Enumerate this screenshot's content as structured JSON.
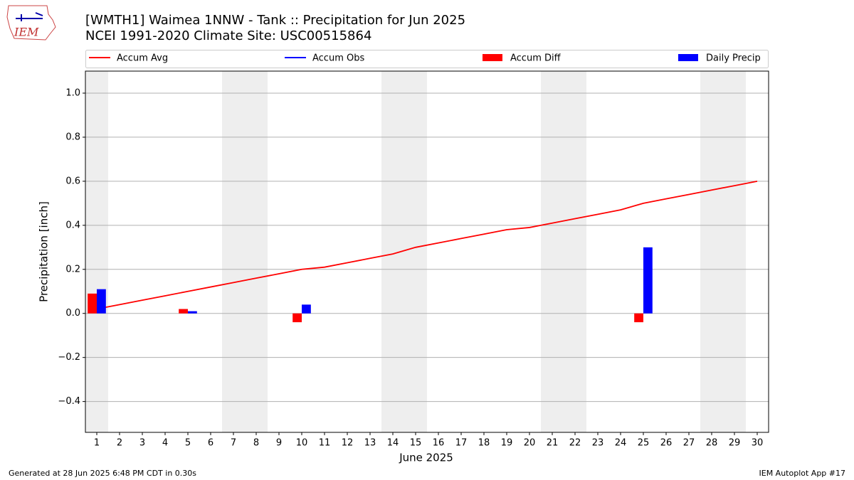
{
  "chart_data": {
    "type": "bar_line",
    "logo_text": "IEM",
    "title": "[WMTH1] Waimea 1NNW - Tank :: Precipitation for Jun 2025",
    "subtitle": "NCEI 1991-2020 Climate Site: USC00515864",
    "xlabel": "June 2025",
    "ylabel": "Precipitation [inch]",
    "x": [
      1,
      2,
      3,
      4,
      5,
      6,
      7,
      8,
      9,
      10,
      11,
      12,
      13,
      14,
      15,
      16,
      17,
      18,
      19,
      20,
      21,
      22,
      23,
      24,
      25,
      26,
      27,
      28,
      29,
      30
    ],
    "series": [
      {
        "name": "Accum Avg",
        "kind": "line",
        "color": "#ff0000",
        "values": [
          0.02,
          0.04,
          0.06,
          0.08,
          0.1,
          0.12,
          0.14,
          0.16,
          0.18,
          0.2,
          0.21,
          0.23,
          0.25,
          0.27,
          0.3,
          0.32,
          0.34,
          0.36,
          0.38,
          0.39,
          0.41,
          0.43,
          0.45,
          0.47,
          0.5,
          0.52,
          0.54,
          0.56,
          0.58,
          0.6
        ]
      },
      {
        "name": "Accum Obs",
        "kind": "line",
        "color": "#0000ff",
        "values": [
          null,
          null,
          null,
          null,
          null,
          null,
          null,
          null,
          null,
          null,
          null,
          null,
          null,
          null,
          null,
          null,
          null,
          null,
          null,
          null,
          null,
          null,
          null,
          null,
          null,
          null,
          null,
          null,
          null,
          null
        ]
      },
      {
        "name": "Accum Diff",
        "kind": "bar",
        "color": "#ff0000",
        "values": [
          0.09,
          null,
          null,
          null,
          0.02,
          null,
          null,
          null,
          null,
          -0.04,
          null,
          null,
          null,
          null,
          null,
          null,
          null,
          null,
          null,
          null,
          null,
          null,
          null,
          null,
          -0.04,
          null,
          null,
          null,
          null,
          null
        ]
      },
      {
        "name": "Daily Precip",
        "kind": "bar",
        "color": "#0000ff",
        "values": [
          0.11,
          null,
          null,
          null,
          0.01,
          null,
          null,
          null,
          null,
          0.04,
          null,
          null,
          null,
          null,
          null,
          null,
          null,
          null,
          null,
          null,
          null,
          null,
          null,
          null,
          0.3,
          null,
          null,
          null,
          null,
          null
        ]
      }
    ],
    "weekend_spans": [
      [
        0.5,
        1.5
      ],
      [
        6.5,
        8.5
      ],
      [
        13.5,
        15.5
      ],
      [
        20.5,
        22.5
      ],
      [
        27.5,
        29.5
      ]
    ],
    "xlim": [
      0.5,
      30.5
    ],
    "xticks": [
      1,
      2,
      3,
      4,
      5,
      6,
      7,
      8,
      9,
      10,
      11,
      12,
      13,
      14,
      15,
      16,
      17,
      18,
      19,
      20,
      21,
      22,
      23,
      24,
      25,
      26,
      27,
      28,
      29,
      30
    ],
    "ylim": [
      -0.54,
      1.1
    ],
    "yticks": [
      {
        "value": -0.4,
        "label": "−0.4"
      },
      {
        "value": -0.2,
        "label": "−0.2"
      },
      {
        "value": 0,
        "label": "0.0"
      },
      {
        "value": 0.2,
        "label": "0.2"
      },
      {
        "value": 0.4,
        "label": "0.4"
      },
      {
        "value": 0.6,
        "label": "0.6"
      },
      {
        "value": 0.8,
        "label": "0.8"
      },
      {
        "value": 1.0,
        "label": "1.0"
      }
    ],
    "grid": true,
    "footer_left": "Generated at 28 Jun 2025 6:48 PM CDT in 0.30s",
    "footer_right": "IEM Autoplot App #17"
  }
}
